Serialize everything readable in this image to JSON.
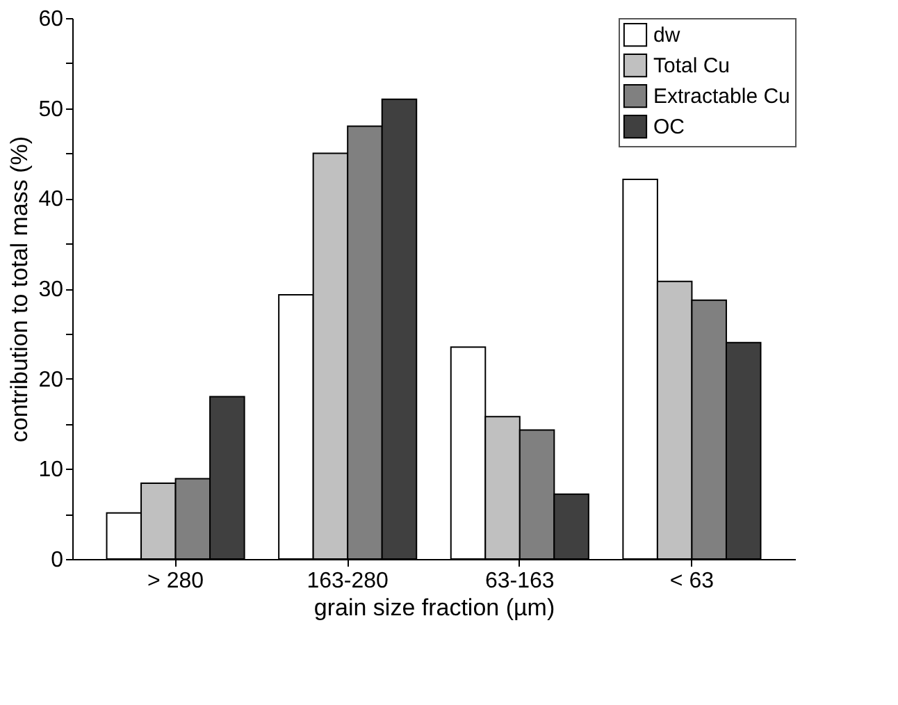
{
  "chart_data": {
    "type": "bar",
    "xlabel": "grain size fraction (µm)",
    "ylabel": "contribution to total mass (%)",
    "categories": [
      "> 280",
      "163-280",
      "63-163",
      "< 63"
    ],
    "series": [
      {
        "name": "dw",
        "color": "#ffffff",
        "values": [
          5.1,
          29.3,
          23.5,
          42.1
        ]
      },
      {
        "name": "Total Cu",
        "color": "#c0c0c0",
        "values": [
          8.4,
          45.0,
          15.8,
          30.8
        ]
      },
      {
        "name": "Extractable Cu",
        "color": "#808080",
        "values": [
          8.9,
          48.0,
          14.3,
          28.7
        ]
      },
      {
        "name": "OC",
        "color": "#404040",
        "values": [
          18.0,
          51.0,
          7.2,
          24.0
        ]
      }
    ],
    "ylim": [
      0,
      60
    ],
    "yticks": [
      0,
      {
        "value": 5,
        "label": null
      },
      10,
      {
        "value": 15,
        "label": null
      },
      20,
      {
        "value": 25,
        "label": null
      },
      30,
      {
        "value": 35,
        "label": null
      },
      40,
      {
        "value": 45,
        "label": null
      },
      50,
      {
        "value": 55,
        "label": null
      },
      60
    ],
    "grid": false,
    "legend": "top right"
  }
}
